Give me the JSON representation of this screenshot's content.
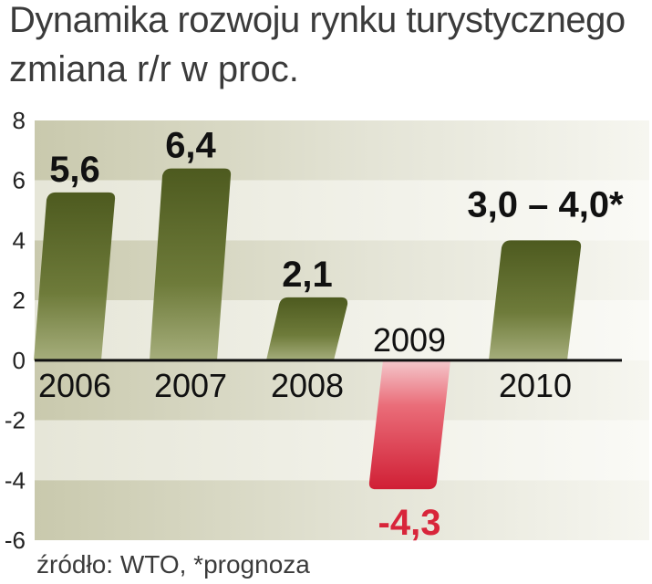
{
  "chart_data": {
    "type": "bar",
    "title": "Dynamika rozwoju rynku turystycznego",
    "subtitle": "zmiana r/r w proc.",
    "source": "źródło: WTO, *prognoza",
    "categories": [
      "2006",
      "2007",
      "2008",
      "2009",
      "2010"
    ],
    "values": [
      5.6,
      6.4,
      2.1,
      -4.3,
      4.0
    ],
    "value_labels": [
      "5,6",
      "6,4",
      "2,1",
      "-4,3",
      "3,0 – 4,0*"
    ],
    "ylim": [
      -6,
      8
    ],
    "yticks": [
      "8",
      "6",
      "4",
      "2",
      "0",
      "-2",
      "-4",
      "-6"
    ],
    "ytick_values": [
      8,
      6,
      4,
      2,
      0,
      -2,
      -4,
      -6
    ],
    "grid": true,
    "colors": {
      "positive": "#5d6a2c",
      "negative": "#d8253a",
      "band_dark": "#d2d2bc",
      "band_light": "#ecece2",
      "text": "#3b3b3b"
    }
  }
}
